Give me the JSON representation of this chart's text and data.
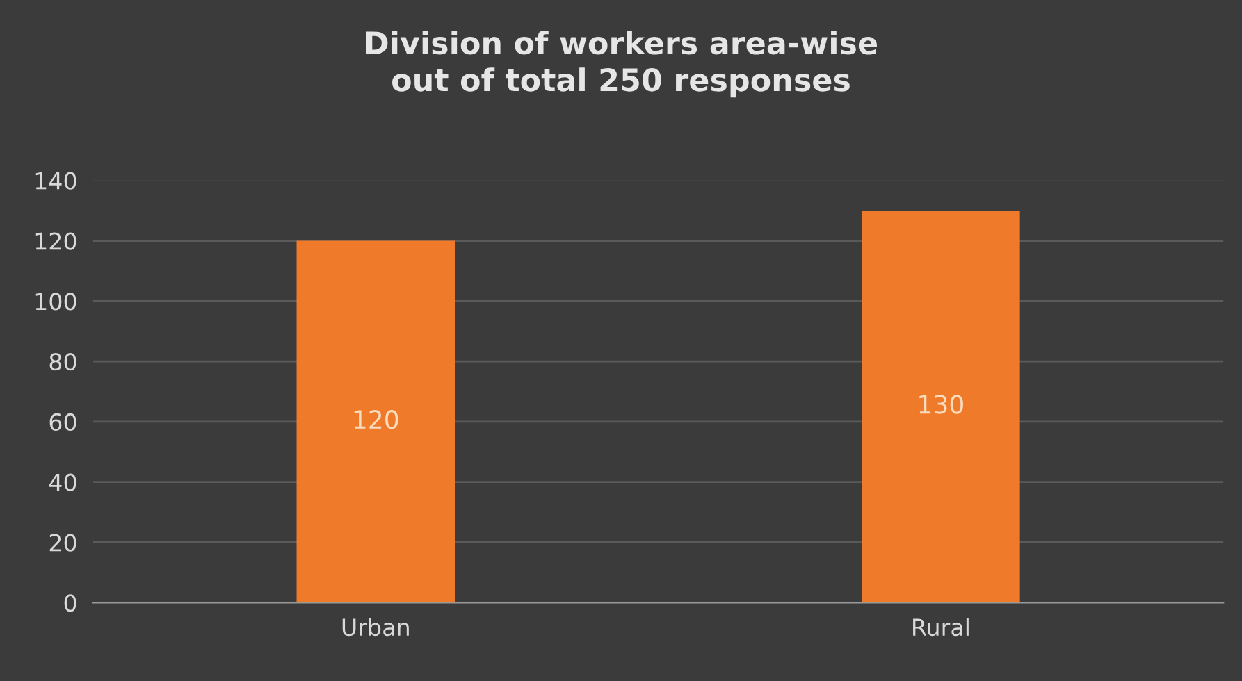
{
  "chart_data": {
    "type": "bar",
    "title": "Division of workers area-wise\nout of total 250 responses",
    "categories": [
      "Urban",
      "Rural"
    ],
    "values": [
      120,
      130
    ],
    "color": "#ef7a2a",
    "ylim": [
      0,
      140
    ],
    "yticks": [
      0,
      20,
      40,
      60,
      80,
      100,
      120,
      140
    ],
    "grid": "y",
    "data_labels": true
  }
}
